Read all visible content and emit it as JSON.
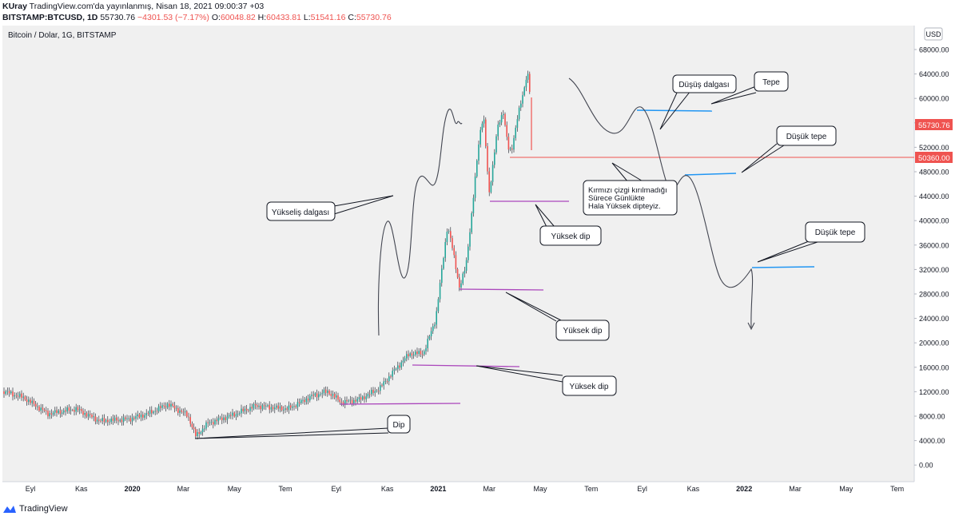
{
  "header": {
    "author": "KUray",
    "published": "TradingView.com'da yayınlanmış, Nisan 18, 2021 09:00:37 +03",
    "symbol": "BITSTAMP:BTCUSD, 1D",
    "last": "55730.76",
    "change": "−4301.53 (−7.17%)",
    "o_label": "O:",
    "o_value": "60048.82",
    "h_label": "H:",
    "h_value": "60433.81",
    "l_label": "L:",
    "l_value": "51541.16",
    "c_label": "C:",
    "c_value": "55730.76"
  },
  "chart_title": "Bitcoin / Dolar, 1G, BITSTAMP",
  "currency": "USD",
  "price_axis": {
    "ticks": [
      "68000.00",
      "64000.00",
      "60000.00",
      "56000.00",
      "52000.00",
      "48000.00",
      "44000.00",
      "40000.00",
      "36000.00",
      "32000.00",
      "28000.00",
      "24000.00",
      "20000.00",
      "16000.00",
      "12000.00",
      "8000.00",
      "4000.00",
      "0.00"
    ],
    "last_price_tag": "55730.76",
    "line_price_tag": "50360.00"
  },
  "time_axis": [
    "Eyl",
    "Kas",
    "2020",
    "Mar",
    "May",
    "Tem",
    "Eyl",
    "Kas",
    "2021",
    "Mar",
    "May",
    "Tem",
    "Eyl",
    "Kas",
    "2022",
    "Mar",
    "May",
    "Tem"
  ],
  "annotations": {
    "yukselis": "Yükseliş dalgası",
    "dip": "Dip",
    "yuksek_dip_1": "Yüksek dip",
    "yuksek_dip_2": "Yüksek dip",
    "yuksek_dip_3": "Yüksek dip",
    "dusus": "Düşüş dalgası",
    "tepe": "Tepe",
    "dusuk_tepe_1": "Düşük tepe",
    "dusuk_tepe_2": "Düşük tepe",
    "note_line1": "Kırmızı çizgi kırılmadığı",
    "note_line2": "Sürece Günlükte",
    "note_line3": "Hala Yüksek dipteyiz."
  },
  "colors": {
    "background": "#f0f0f0",
    "candle_up": "#26a69a",
    "candle_down": "#ef5350",
    "support_line": "#ab47bc",
    "resistance_line": "#2962ff",
    "red_line": "#ef5350"
  },
  "footer": {
    "brand": "TradingView"
  }
}
